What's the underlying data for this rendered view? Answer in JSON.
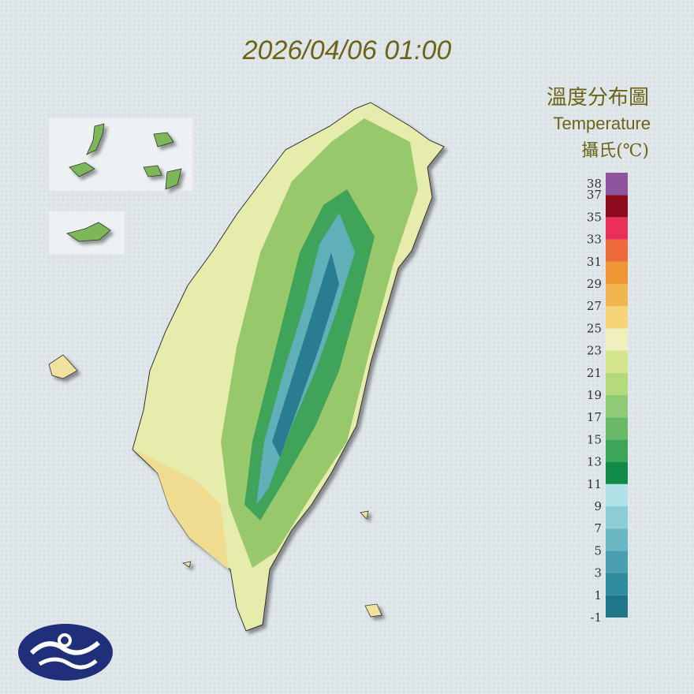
{
  "header": {
    "timestamp": "2026/04/06 01:00"
  },
  "legend": {
    "title": "溫度分布圖",
    "subtitle": "Temperature",
    "unit": "攝氏(℃)",
    "range": [
      -1,
      39
    ],
    "ticks": [
      38,
      37,
      35,
      33,
      31,
      29,
      27,
      25,
      23,
      21,
      19,
      17,
      15,
      13,
      11,
      9,
      7,
      5,
      3,
      1,
      -1
    ],
    "colors": [
      "#1f7688",
      "#2f8c9c",
      "#4aa0b0",
      "#6ab8c4",
      "#8ccdd6",
      "#b0e3e8",
      "#118a48",
      "#3da55a",
      "#68b868",
      "#8fca74",
      "#b4da7c",
      "#d4e68c",
      "#f1f0bd",
      "#f5d577",
      "#f2b650",
      "#ee9633",
      "#ec6a3a",
      "#e8305a",
      "#8c0a1c",
      "#8d559e"
    ]
  }
}
